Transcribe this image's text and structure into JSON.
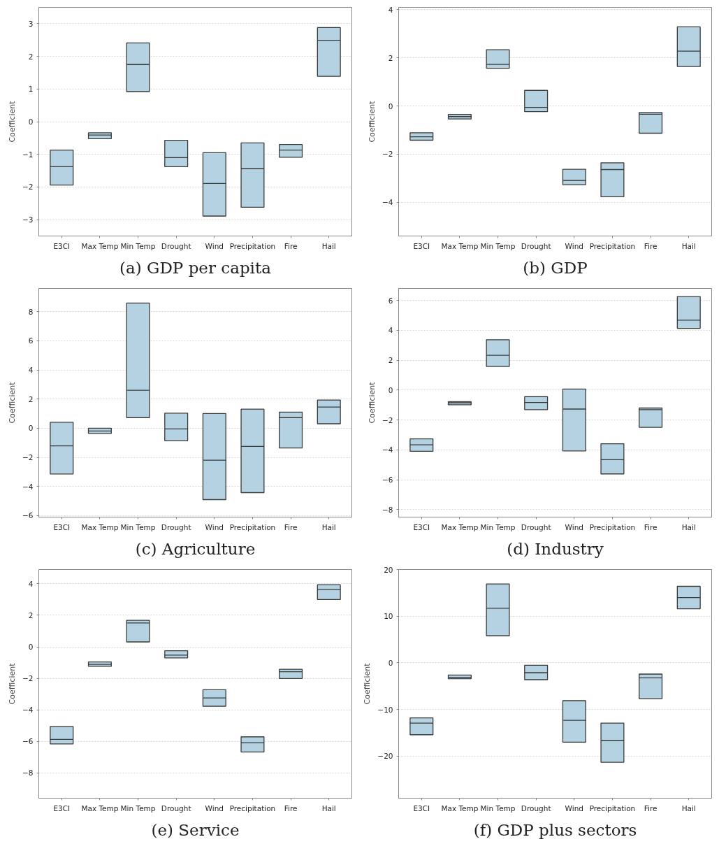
{
  "chart_data": [
    {
      "type": "box",
      "title": "(a) GDP per capita",
      "ylabel": "Coefficient",
      "categories": [
        "E3CI",
        "Max Temp",
        "Min Temp",
        "Drought",
        "Wind",
        "Precipitation",
        "Fire",
        "Hail"
      ],
      "color": "#b4d2e1",
      "grid": "y",
      "ylim": [
        -3.5,
        3.5
      ],
      "yticks": [
        -3,
        -2,
        -1,
        0,
        1,
        2,
        3
      ],
      "boxes": [
        {
          "low": -1.94,
          "q1": -1.94,
          "median": -1.38,
          "q3": -0.87,
          "high": -0.87
        },
        {
          "low": -0.52,
          "q1": -0.52,
          "median": -0.41,
          "q3": -0.34,
          "high": -0.34
        },
        {
          "low": 0.92,
          "q1": 0.92,
          "median": 1.75,
          "q3": 2.41,
          "high": 2.41
        },
        {
          "low": -1.38,
          "q1": -1.38,
          "median": -1.1,
          "q3": -0.57,
          "high": -0.57
        },
        {
          "low": -2.89,
          "q1": -2.89,
          "median": -1.89,
          "q3": -0.95,
          "high": -0.95
        },
        {
          "low": -2.62,
          "q1": -2.62,
          "median": -1.44,
          "q3": -0.65,
          "high": -0.65
        },
        {
          "low": -1.09,
          "q1": -1.09,
          "median": -0.87,
          "q3": -0.7,
          "high": -0.7
        },
        {
          "low": 1.39,
          "q1": 1.39,
          "median": 2.49,
          "q3": 2.88,
          "high": 2.88
        }
      ]
    },
    {
      "type": "box",
      "title": "(b) GDP",
      "ylabel": "Coefficient",
      "categories": [
        "E3CI",
        "Max Temp",
        "Min Temp",
        "Drought",
        "Wind",
        "Precipitation",
        "Fire",
        "Hail"
      ],
      "color": "#b4d2e1",
      "grid": "y",
      "ylim": [
        -5.4,
        4.1
      ],
      "yticks": [
        -4,
        -2,
        0,
        2,
        4
      ],
      "boxes": [
        {
          "low": -1.42,
          "q1": -1.42,
          "median": -1.28,
          "q3": -1.11,
          "high": -1.11
        },
        {
          "low": -0.54,
          "q1": -0.54,
          "median": -0.44,
          "q3": -0.35,
          "high": -0.35
        },
        {
          "low": 1.57,
          "q1": 1.57,
          "median": 1.73,
          "q3": 2.34,
          "high": 2.34
        },
        {
          "low": -0.23,
          "q1": -0.23,
          "median": -0.06,
          "q3": 0.65,
          "high": 0.65
        },
        {
          "low": -3.27,
          "q1": -3.27,
          "median": -3.09,
          "q3": -2.63,
          "high": -2.63
        },
        {
          "low": -3.77,
          "q1": -3.77,
          "median": -2.64,
          "q3": -2.36,
          "high": -2.36
        },
        {
          "low": -1.13,
          "q1": -1.13,
          "median": -0.34,
          "q3": -0.27,
          "high": -0.27
        },
        {
          "low": 1.64,
          "q1": 1.64,
          "median": 2.28,
          "q3": 3.29,
          "high": 3.29
        }
      ]
    },
    {
      "type": "box",
      "title": "(c) Agriculture",
      "ylabel": "Coefficient",
      "categories": [
        "E3CI",
        "Max Temp",
        "Min Temp",
        "Drought",
        "Wind",
        "Precipitation",
        "Fire",
        "Hail"
      ],
      "color": "#b4d2e1",
      "grid": "y",
      "ylim": [
        -6.1,
        9.6
      ],
      "yticks": [
        -6,
        -4,
        -2,
        0,
        2,
        4,
        6,
        8
      ],
      "boxes": [
        {
          "low": -3.14,
          "q1": -3.14,
          "median": -1.21,
          "q3": 0.41,
          "high": 0.41
        },
        {
          "low": -0.36,
          "q1": -0.36,
          "median": -0.19,
          "q3": 0.0,
          "high": 0.0
        },
        {
          "low": 0.73,
          "q1": 0.73,
          "median": 2.61,
          "q3": 8.6,
          "high": 8.6
        },
        {
          "low": -0.86,
          "q1": -0.86,
          "median": -0.04,
          "q3": 1.04,
          "high": 1.04
        },
        {
          "low": -4.9,
          "q1": -4.9,
          "median": -2.19,
          "q3": 1.01,
          "high": 1.01
        },
        {
          "low": -4.42,
          "q1": -4.42,
          "median": -1.24,
          "q3": 1.31,
          "high": 1.31
        },
        {
          "low": -1.35,
          "q1": -1.35,
          "median": 0.73,
          "q3": 1.11,
          "high": 1.11
        },
        {
          "low": 0.31,
          "q1": 0.31,
          "median": 1.46,
          "q3": 1.94,
          "high": 1.94
        }
      ]
    },
    {
      "type": "box",
      "title": "(d) Industry",
      "ylabel": "Coefficient",
      "categories": [
        "E3CI",
        "Max Temp",
        "Min Temp",
        "Drought",
        "Wind",
        "Precipitation",
        "Fire",
        "Hail"
      ],
      "color": "#b4d2e1",
      "grid": "y",
      "ylim": [
        -8.5,
        6.8
      ],
      "yticks": [
        -8,
        -6,
        -4,
        -2,
        0,
        2,
        4,
        6
      ],
      "boxes": [
        {
          "low": -4.1,
          "q1": -4.1,
          "median": -3.66,
          "q3": -3.27,
          "high": -3.27
        },
        {
          "low": -0.98,
          "q1": -0.98,
          "median": -0.85,
          "q3": -0.78,
          "high": -0.78
        },
        {
          "low": 1.58,
          "q1": 1.58,
          "median": 2.33,
          "q3": 3.37,
          "high": 3.37
        },
        {
          "low": -1.31,
          "q1": -1.31,
          "median": -0.83,
          "q3": -0.44,
          "high": -0.44
        },
        {
          "low": -4.07,
          "q1": -4.07,
          "median": -1.27,
          "q3": 0.07,
          "high": 0.07
        },
        {
          "low": -5.61,
          "q1": -5.61,
          "median": -4.66,
          "q3": -3.59,
          "high": -3.59
        },
        {
          "low": -2.49,
          "q1": -2.49,
          "median": -1.31,
          "q3": -1.2,
          "high": -1.2
        },
        {
          "low": 4.13,
          "q1": 4.13,
          "median": 4.68,
          "q3": 6.26,
          "high": 6.26
        }
      ]
    },
    {
      "type": "box",
      "title": "(e) Service",
      "ylabel": "Coefficient",
      "categories": [
        "E3CI",
        "Max Temp",
        "Min Temp",
        "Drought",
        "Wind",
        "Precipitation",
        "Fire",
        "Hail"
      ],
      "color": "#b4d2e1",
      "grid": "y",
      "ylim": [
        -9.6,
        4.9
      ],
      "yticks": [
        -8,
        -6,
        -4,
        -2,
        0,
        2,
        4
      ],
      "boxes": [
        {
          "low": -6.16,
          "q1": -6.16,
          "median": -5.87,
          "q3": -5.05,
          "high": -5.05
        },
        {
          "low": -1.24,
          "q1": -1.24,
          "median": -1.11,
          "q3": -0.96,
          "high": -0.96
        },
        {
          "low": 0.31,
          "q1": 0.31,
          "median": 1.51,
          "q3": 1.68,
          "high": 1.68
        },
        {
          "low": -0.7,
          "q1": -0.7,
          "median": -0.53,
          "q3": -0.25,
          "high": -0.25
        },
        {
          "low": -3.77,
          "q1": -3.77,
          "median": -3.24,
          "q3": -2.72,
          "high": -2.72
        },
        {
          "low": -6.67,
          "q1": -6.67,
          "median": -6.08,
          "q3": -5.71,
          "high": -5.71
        },
        {
          "low": -2.01,
          "q1": -2.01,
          "median": -1.58,
          "q3": -1.42,
          "high": -1.42
        },
        {
          "low": 3.0,
          "q1": 3.0,
          "median": 3.63,
          "q3": 3.94,
          "high": 3.94
        }
      ]
    },
    {
      "type": "box",
      "title": "(f) GDP plus sectors",
      "ylabel": "Coefficient",
      "categories": [
        "E3CI",
        "Max Temp",
        "Min Temp",
        "Drought",
        "Wind",
        "Precipitation",
        "Fire",
        "Hail"
      ],
      "color": "#b4d2e1",
      "grid": "y",
      "ylim": [
        -29,
        20
      ],
      "yticks": [
        -20,
        -10,
        0,
        10,
        20
      ],
      "boxes": [
        {
          "low": -15.4,
          "q1": -15.4,
          "median": -12.9,
          "q3": -11.8,
          "high": -11.8
        },
        {
          "low": -3.4,
          "q1": -3.4,
          "median": -3.1,
          "q3": -2.6,
          "high": -2.6
        },
        {
          "low": 5.8,
          "q1": 5.8,
          "median": 11.7,
          "q3": 16.9,
          "high": 16.9
        },
        {
          "low": -3.6,
          "q1": -3.6,
          "median": -2.1,
          "q3": -0.5,
          "high": -0.5
        },
        {
          "low": -17.0,
          "q1": -17.0,
          "median": -12.3,
          "q3": -8.1,
          "high": -8.1
        },
        {
          "low": -21.3,
          "q1": -21.3,
          "median": -16.6,
          "q3": -12.9,
          "high": -12.9
        },
        {
          "low": -7.7,
          "q1": -7.7,
          "median": -3.2,
          "q3": -2.4,
          "high": -2.4
        },
        {
          "low": 11.6,
          "q1": 11.6,
          "median": 14.0,
          "q3": 16.4,
          "high": 16.4
        }
      ]
    }
  ]
}
